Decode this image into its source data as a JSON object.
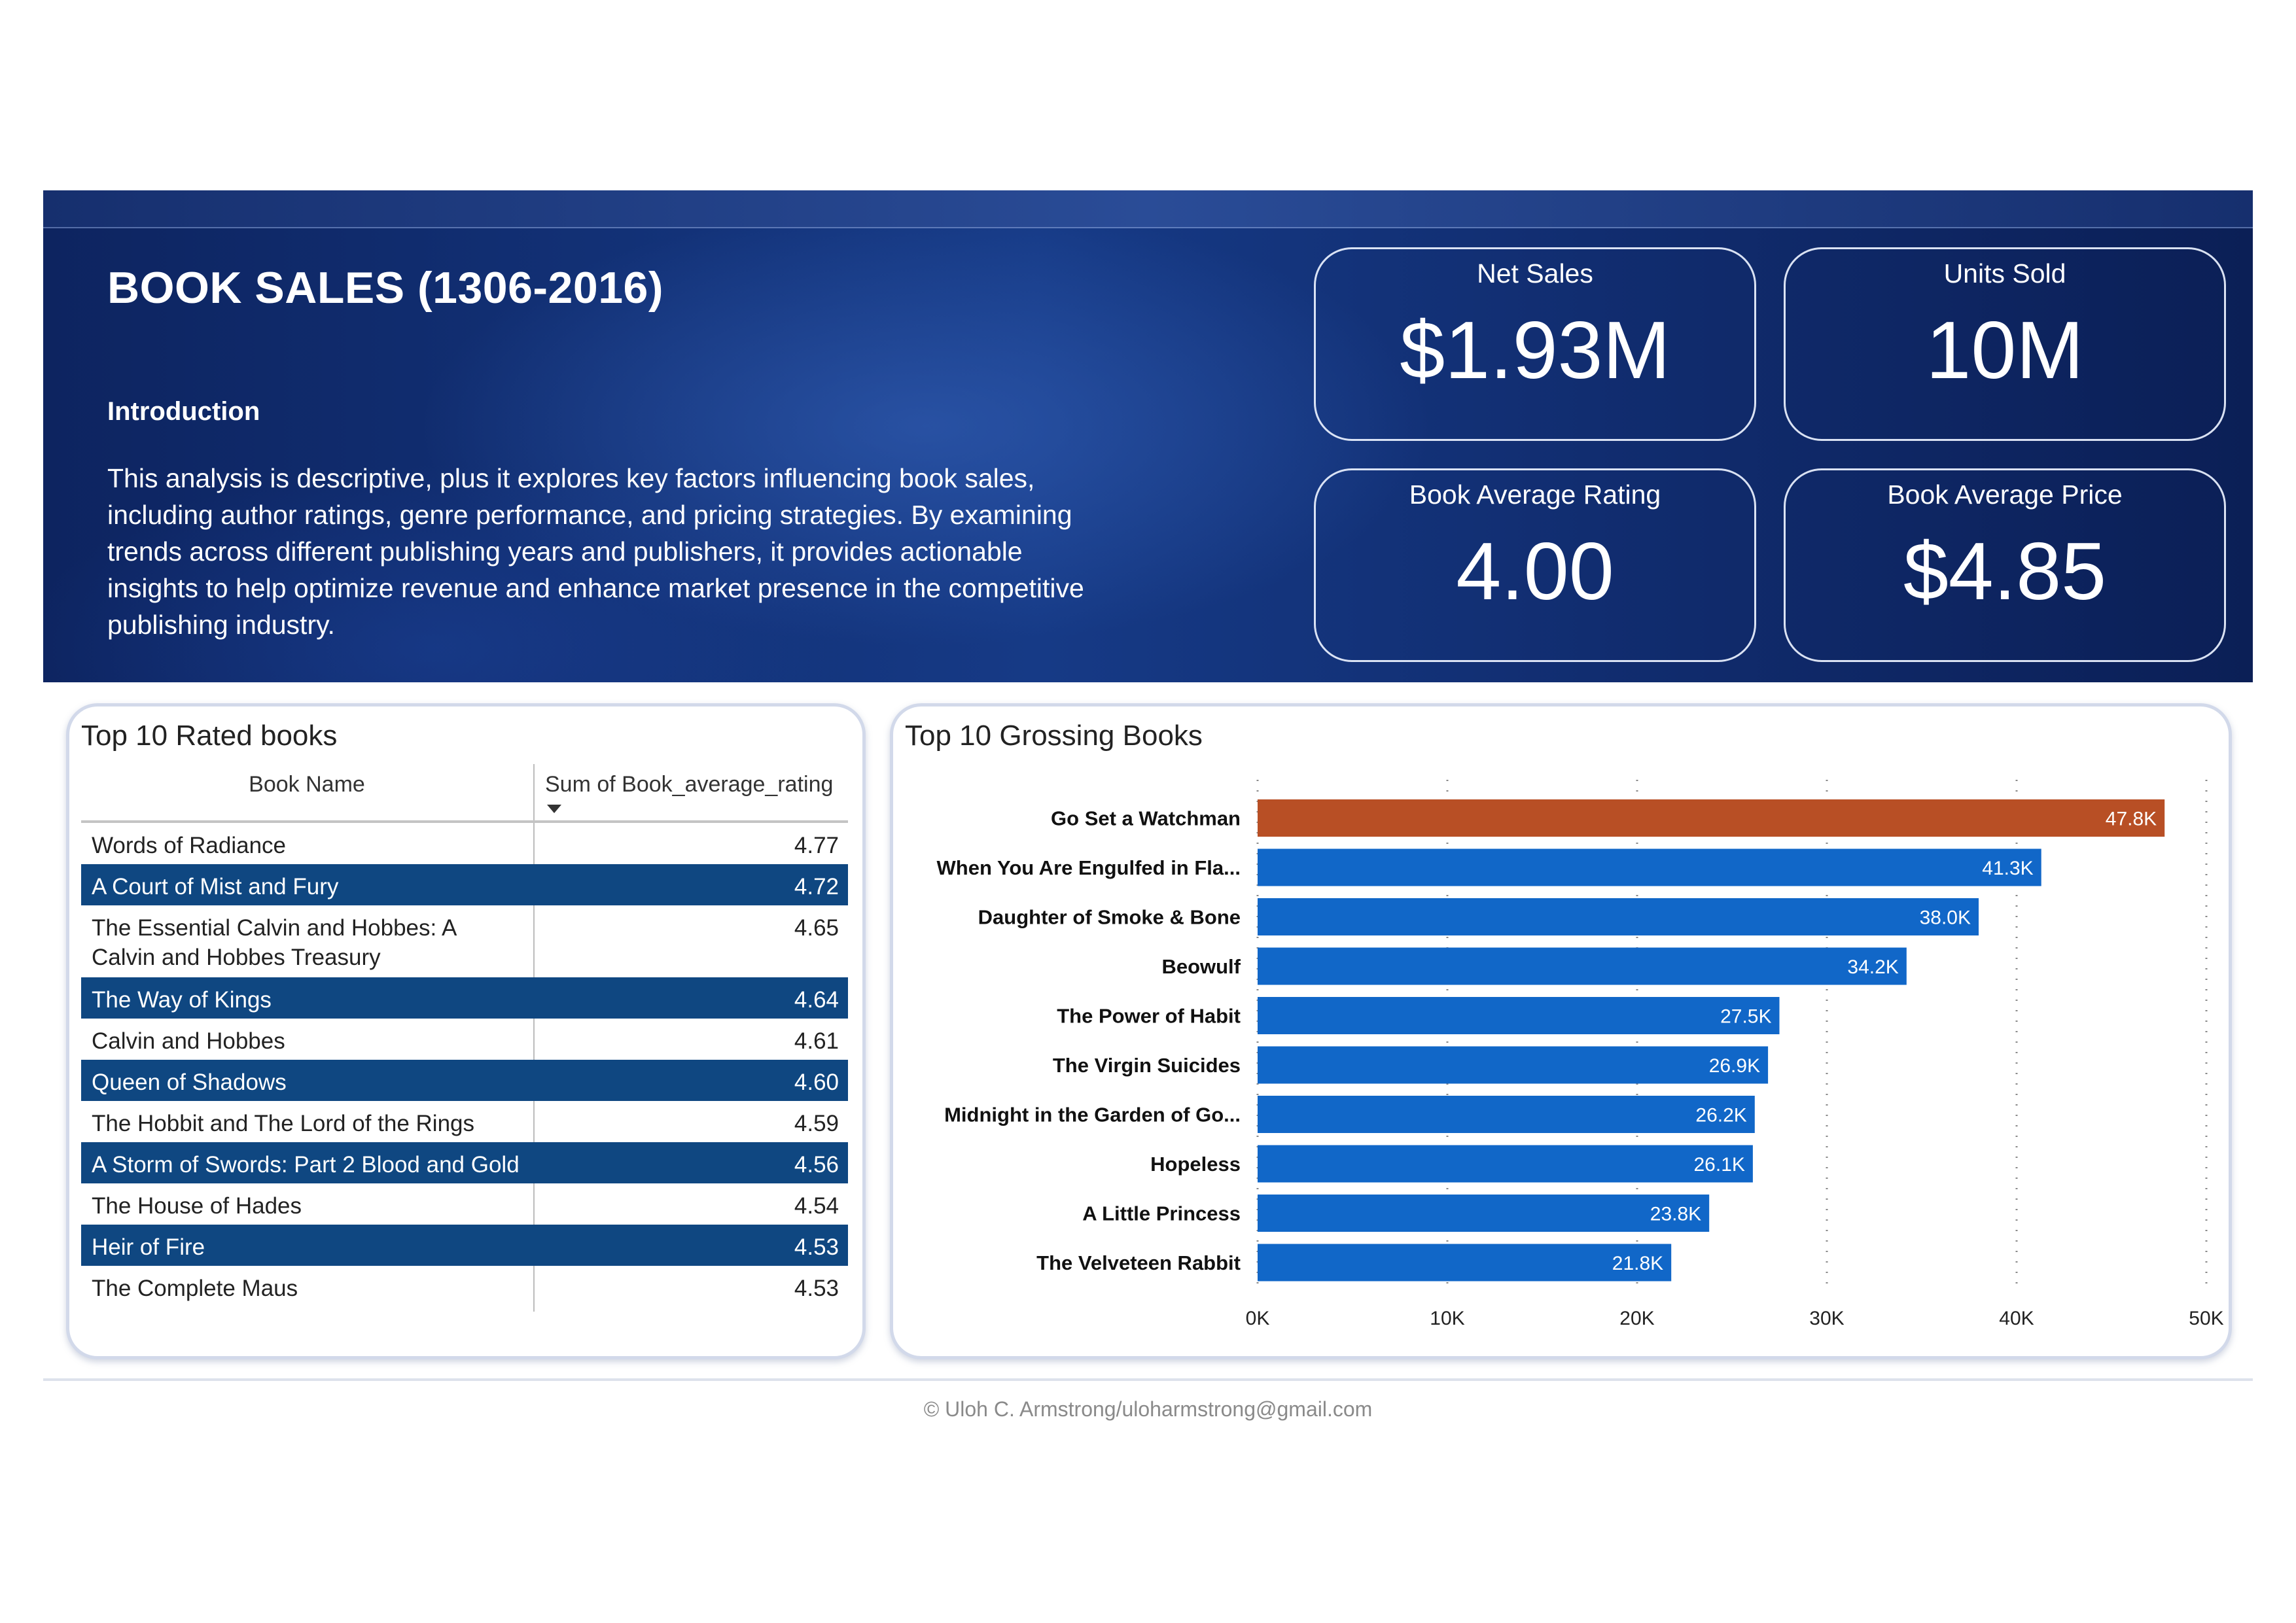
{
  "header": {
    "title": "BOOK SALES (1306-2016)",
    "intro_heading": "Introduction",
    "intro_text": "This analysis is descriptive, plus it explores key factors influencing book sales, including author ratings, genre performance, and pricing strategies. By examining trends across different publishing years and publishers, it provides actionable insights to help optimize revenue and enhance market presence in the competitive publishing industry."
  },
  "kpis": [
    {
      "label": "Net Sales",
      "value": "$1.93M"
    },
    {
      "label": "Units Sold",
      "value": "10M"
    },
    {
      "label": "Book Average Rating",
      "value": "4.00"
    },
    {
      "label": "Book Average Price",
      "value": "$4.85"
    }
  ],
  "rated_table": {
    "title": "Top 10 Rated books",
    "col_name": "Book Name",
    "col_value": "Sum of Book_average_rating",
    "highlight_color": "#0f4781",
    "rows": [
      {
        "name": "Words of Radiance",
        "value": "4.77",
        "highlight": false
      },
      {
        "name": "A Court of Mist and Fury",
        "value": "4.72",
        "highlight": true
      },
      {
        "name": "The Essential Calvin and Hobbes: A Calvin and Hobbes Treasury",
        "value": "4.65",
        "highlight": false
      },
      {
        "name": "The Way of Kings",
        "value": "4.64",
        "highlight": true
      },
      {
        "name": "Calvin and Hobbes",
        "value": "4.61",
        "highlight": false
      },
      {
        "name": "Queen of Shadows",
        "value": "4.60",
        "highlight": true
      },
      {
        "name": "The Hobbit and The Lord of the Rings",
        "value": "4.59",
        "highlight": false
      },
      {
        "name": "A Storm of Swords: Part 2 Blood and Gold",
        "value": "4.56",
        "highlight": true
      },
      {
        "name": "The House of Hades",
        "value": "4.54",
        "highlight": false
      },
      {
        "name": "Heir of Fire",
        "value": "4.53",
        "highlight": true
      },
      {
        "name": "The Complete Maus",
        "value": "4.53",
        "highlight": false
      }
    ]
  },
  "chart_data": {
    "type": "bar",
    "orientation": "horizontal",
    "title": "Top 10 Grossing Books",
    "categories": [
      "Go Set a Watchman",
      "When You Are Engulfed in Fla...",
      "Daughter of Smoke & Bone",
      "Beowulf",
      "The Power of Habit",
      "The Virgin Suicides",
      "Midnight in the Garden of Go...",
      "Hopeless",
      "A Little Princess",
      "The Velveteen Rabbit"
    ],
    "values": [
      47800,
      41300,
      38000,
      34200,
      27500,
      26900,
      26200,
      26100,
      23800,
      21800
    ],
    "data_labels": [
      "47.8K",
      "41.3K",
      "38.0K",
      "34.2K",
      "27.5K",
      "26.9K",
      "26.2K",
      "26.1K",
      "23.8K",
      "21.8K"
    ],
    "xlim": [
      0,
      50000
    ],
    "xticks": [
      0,
      10000,
      20000,
      30000,
      40000,
      50000
    ],
    "xtick_labels": [
      "0K",
      "10K",
      "20K",
      "30K",
      "40K",
      "50K"
    ],
    "grid": true,
    "bar_color": "#1167c8",
    "highlight_color": "#b84f25",
    "highlight_index": 0
  },
  "footer": {
    "text": "© Uloh C. Armstrong/uloharmstrong@gmail.com"
  }
}
